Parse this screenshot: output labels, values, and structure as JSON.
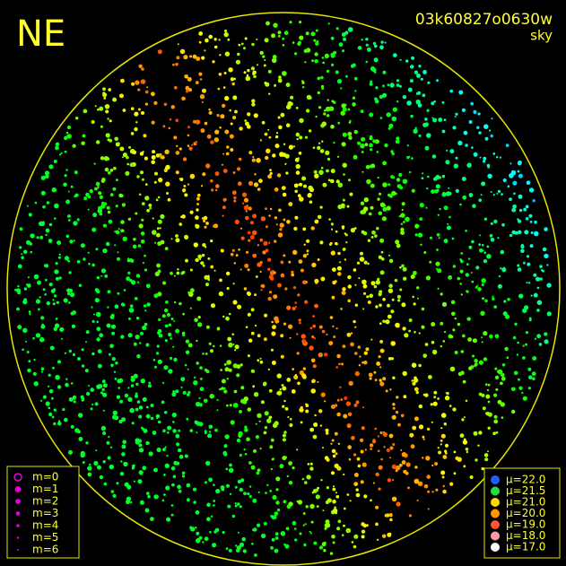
{
  "header": {
    "direction": "NE",
    "frame_id": "03k60827o0630w",
    "mode": "sky"
  },
  "magnitude_legend": [
    "m=0",
    "m=1",
    "m=2",
    "m=3",
    "m=4",
    "m=5",
    "m=6"
  ],
  "brightness_legend": [
    "μ=22.0",
    "μ=21.5",
    "μ=21.0",
    "μ=20.0",
    "μ=19.0",
    "μ=18.0",
    "μ=17.0"
  ]
}
